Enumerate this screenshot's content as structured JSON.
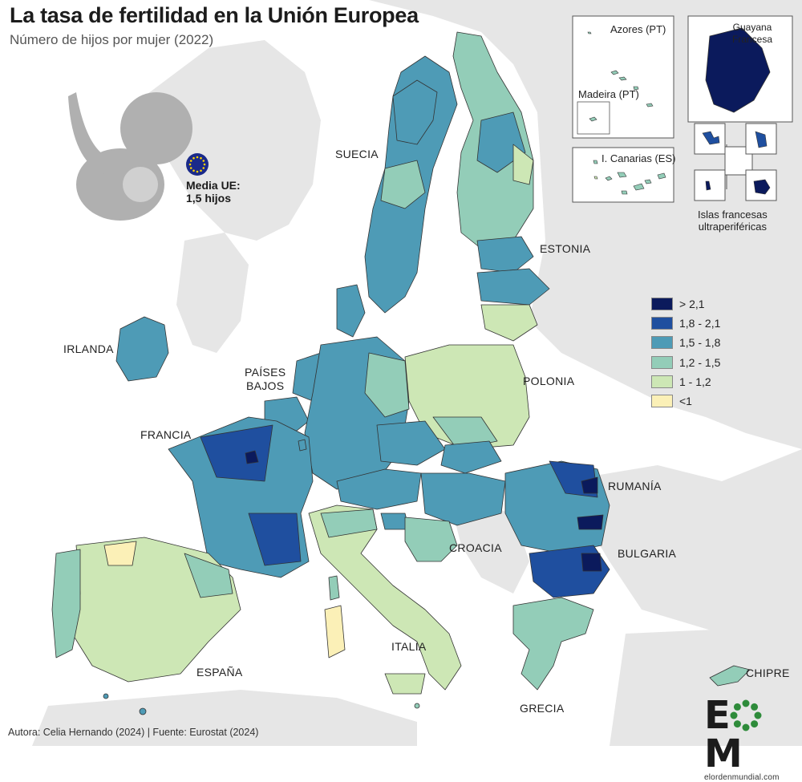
{
  "title": "La tasa de fertilidad en la Unión Europea",
  "subtitle": "Número de hijos por mujer (2022)",
  "mean": {
    "line1": "Media UE:",
    "line2": "1,5 hijos"
  },
  "colors": {
    "land_background": "#e6e6e6",
    "sea": "#ffffff",
    "gt_2_1": "#0b1a5c",
    "r_1_8_2_1": "#1f4f9f",
    "r_1_5_1_8": "#4e9bb6",
    "r_1_2_1_5": "#93cdb8",
    "r_1_1_2": "#cde7b5",
    "lt_1": "#fbf0b7"
  },
  "legend": [
    {
      "label": "> 2,1",
      "color": "#0b1a5c"
    },
    {
      "label": "1,8 - 2,1",
      "color": "#1f4f9f"
    },
    {
      "label": "1,5 - 1,8",
      "color": "#4e9bb6"
    },
    {
      "label": "1,2 - 1,5",
      "color": "#93cdb8"
    },
    {
      "label": "1 - 1,2",
      "color": "#cde7b5"
    },
    {
      "label": "<1",
      "color": "#fbf0b7"
    }
  ],
  "countries": {
    "suecia": "SUECIA",
    "estonia": "ESTONIA",
    "irlanda": "IRLANDA",
    "paises_bajos_1": "PAÍSES",
    "paises_bajos_2": "BAJOS",
    "polonia": "POLONIA",
    "francia": "FRANCIA",
    "rumania": "RUMANÍA",
    "croacia": "CROACIA",
    "bulgaria": "BULGARIA",
    "italia": "ITALIA",
    "espana": "ESPAÑA",
    "grecia": "GRECIA",
    "chipre": "CHIPRE"
  },
  "insets": {
    "azores": "Azores (PT)",
    "madeira": "Madeira (PT)",
    "canarias": "I. Canarias (ES)",
    "guayana_1": "Guayana",
    "guayana_2": "Francesa",
    "islas_1": "Islas francesas",
    "islas_2": "ultraperiféricas"
  },
  "footer": "Autora: Celia Hernando (2024) | Fuente: Eurostat (2024)",
  "logo": {
    "text_left": "E",
    "text_right": "M",
    "url": "elordenmundial.com"
  }
}
